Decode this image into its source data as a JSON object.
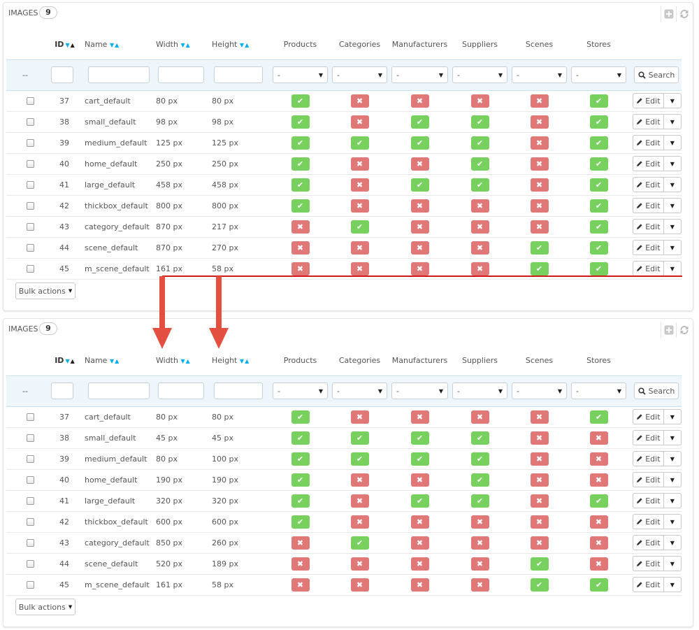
{
  "colors": {
    "yes": "#78d05e",
    "no": "#e07878",
    "arrow": "#e45040",
    "accent": "#00aff0"
  },
  "columns": {
    "id": "ID",
    "name": "Name",
    "width": "Width",
    "height": "Height",
    "products": "Products",
    "categories": "Categories",
    "manufacturers": "Manufacturers",
    "suppliers": "Suppliers",
    "scenes": "Scenes",
    "stores": "Stores"
  },
  "filter": {
    "dashes": "--",
    "select_value": "-",
    "search_label": "Search"
  },
  "row_actions": {
    "edit_label": "Edit"
  },
  "bulk_label": "Bulk actions",
  "icons": {
    "yes": "check-icon",
    "no": "cross-icon",
    "edit": "pencil-icon",
    "search": "search-icon",
    "add": "plus-icon",
    "refresh": "refresh-icon"
  },
  "panel1": {
    "title": "IMAGES",
    "count": "9",
    "rows": [
      {
        "id": "37",
        "name": "cart_default",
        "width": "80 px",
        "height": "80 px",
        "flags": [
          true,
          false,
          false,
          false,
          false,
          true
        ]
      },
      {
        "id": "38",
        "name": "small_default",
        "width": "98 px",
        "height": "98 px",
        "flags": [
          true,
          false,
          true,
          true,
          false,
          true
        ]
      },
      {
        "id": "39",
        "name": "medium_default",
        "width": "125 px",
        "height": "125 px",
        "flags": [
          true,
          true,
          true,
          true,
          false,
          true
        ]
      },
      {
        "id": "40",
        "name": "home_default",
        "width": "250 px",
        "height": "250 px",
        "flags": [
          true,
          false,
          false,
          true,
          false,
          true
        ]
      },
      {
        "id": "41",
        "name": "large_default",
        "width": "458 px",
        "height": "458 px",
        "flags": [
          true,
          false,
          true,
          true,
          false,
          true
        ]
      },
      {
        "id": "42",
        "name": "thickbox_default",
        "width": "800 px",
        "height": "800 px",
        "flags": [
          true,
          false,
          false,
          false,
          false,
          true
        ]
      },
      {
        "id": "43",
        "name": "category_default",
        "width": "870 px",
        "height": "217 px",
        "flags": [
          false,
          true,
          false,
          false,
          false,
          true
        ]
      },
      {
        "id": "44",
        "name": "scene_default",
        "width": "870 px",
        "height": "270 px",
        "flags": [
          false,
          false,
          false,
          false,
          true,
          true
        ]
      },
      {
        "id": "45",
        "name": "m_scene_default",
        "width": "161 px",
        "height": "58 px",
        "flags": [
          false,
          false,
          false,
          false,
          true,
          true
        ]
      }
    ]
  },
  "panel2": {
    "title": "IMAGES",
    "count": "9",
    "rows": [
      {
        "id": "37",
        "name": "cart_default",
        "width": "80 px",
        "height": "80 px",
        "flags": [
          true,
          false,
          false,
          false,
          false,
          true
        ]
      },
      {
        "id": "38",
        "name": "small_default",
        "width": "45 px",
        "height": "45 px",
        "flags": [
          true,
          true,
          true,
          true,
          false,
          false
        ]
      },
      {
        "id": "39",
        "name": "medium_default",
        "width": "80 px",
        "height": "100 px",
        "flags": [
          true,
          true,
          true,
          true,
          false,
          false
        ]
      },
      {
        "id": "40",
        "name": "home_default",
        "width": "190 px",
        "height": "190 px",
        "flags": [
          true,
          false,
          false,
          true,
          false,
          false
        ]
      },
      {
        "id": "41",
        "name": "large_default",
        "width": "320 px",
        "height": "320 px",
        "flags": [
          true,
          false,
          true,
          true,
          false,
          true
        ]
      },
      {
        "id": "42",
        "name": "thickbox_default",
        "width": "600 px",
        "height": "600 px",
        "flags": [
          true,
          false,
          false,
          false,
          false,
          false
        ]
      },
      {
        "id": "43",
        "name": "category_default",
        "width": "850 px",
        "height": "260 px",
        "flags": [
          false,
          true,
          false,
          false,
          false,
          false
        ]
      },
      {
        "id": "44",
        "name": "scene_default",
        "width": "520 px",
        "height": "189 px",
        "flags": [
          false,
          false,
          false,
          false,
          true,
          false
        ]
      },
      {
        "id": "45",
        "name": "m_scene_default",
        "width": "161 px",
        "height": "58 px",
        "flags": [
          false,
          false,
          false,
          false,
          true,
          true
        ]
      }
    ]
  }
}
